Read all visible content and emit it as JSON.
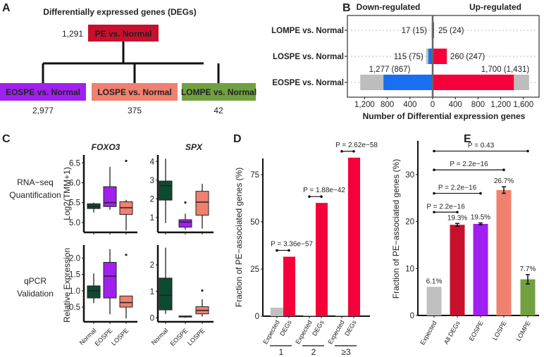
{
  "colors": {
    "pe": "#c8102e",
    "eospe": "#a020f0",
    "lospe": "#f08070",
    "lompe": "#70a040",
    "normal": "#0d4a32",
    "expected": "#c0c0c0",
    "down": "#1a6ef0",
    "up": "#f5003a",
    "grey": "#bdbdbd"
  },
  "chart_data": [
    {
      "panel": "A",
      "type": "diagram",
      "title": "Differentially expressed genes (DEGs)",
      "root": {
        "label": "PE vs. Normal",
        "count": "1,291"
      },
      "children": [
        {
          "label": "EOSPE vs. Normal",
          "count": "2,977"
        },
        {
          "label": "LOSPE vs. Normal",
          "count": "375"
        },
        {
          "label": "LOMPE vs. Normal",
          "count": "42"
        }
      ]
    },
    {
      "panel": "B",
      "type": "bar",
      "orientation": "horizontal-diverging",
      "xlabel": "Number of Differential expression genes",
      "headers": {
        "down": "Down-regulated",
        "up": "Up-regulated"
      },
      "ticks": [
        {
          "v": -1200,
          "t": "1,200"
        },
        {
          "v": -800,
          "t": "800"
        },
        {
          "v": -400,
          "t": "400"
        },
        {
          "v": 0,
          "t": "0"
        },
        {
          "v": 400,
          "t": "400"
        },
        {
          "v": 800,
          "t": "800"
        },
        {
          "v": 1200,
          "t": "1,200"
        },
        {
          "v": 1600,
          "t": "1,600"
        }
      ],
      "rows": [
        {
          "label": "LOMPE vs. Normal",
          "down_total": 17,
          "down_sub": 15,
          "up_total": 25,
          "up_sub": 24,
          "down_text": "17 (15)",
          "up_text": "25 (24)"
        },
        {
          "label": "LOSPE vs. Normal",
          "down_total": 115,
          "down_sub": 75,
          "up_total": 260,
          "up_sub": 247,
          "down_text": "115 (75)",
          "up_text": "260 (247)"
        },
        {
          "label": "EOSPE vs. Normal",
          "down_total": 1277,
          "down_sub": 867,
          "up_total": 1700,
          "up_sub": 1431,
          "down_text": "1,277 (867)",
          "up_text": "1,700 (1,431)"
        }
      ]
    },
    {
      "panel": "C",
      "type": "box",
      "row_labels": [
        [
          "RNA−seq",
          "Quantification"
        ],
        [
          "qPCR",
          "Validation"
        ]
      ],
      "ylabels": [
        "Log2(TMM+1)",
        "Relative Expression"
      ],
      "genes": [
        "FOXO3",
        "SPX"
      ],
      "groups": [
        "Normal",
        "EOSPE",
        "LOSPE"
      ],
      "plots": [
        {
          "gene": "FOXO3",
          "row": 0,
          "ylim": [
            4.75,
            6.7
          ],
          "ticks": [
            {
              "v": 5.0,
              "t": "5.0"
            },
            {
              "v": 5.5,
              "t": "5.5"
            },
            {
              "v": 6.0,
              "t": "6.0"
            },
            {
              "v": 6.5,
              "t": "6.5"
            }
          ],
          "boxes": [
            [
              5.25,
              5.35,
              5.4,
              5.47,
              5.5,
              []
            ],
            [
              5.32,
              5.4,
              5.5,
              5.9,
              6.4,
              []
            ],
            [
              4.8,
              5.2,
              5.37,
              5.52,
              5.57,
              [
                6.55
              ]
            ]
          ]
        },
        {
          "gene": "SPX",
          "row": 0,
          "ylim": [
            0.2,
            4.35
          ],
          "ticks": [
            {
              "v": 1,
              "t": "1"
            },
            {
              "v": 2,
              "t": "2"
            },
            {
              "v": 3,
              "t": "3"
            },
            {
              "v": 4,
              "t": "4"
            }
          ],
          "boxes": [
            [
              0.7,
              1.93,
              2.7,
              2.95,
              4.15,
              []
            ],
            [
              0.35,
              0.48,
              0.75,
              0.88,
              1.2,
              [
                1.8
              ]
            ],
            [
              0.4,
              1.12,
              1.82,
              2.4,
              2.8,
              []
            ]
          ]
        },
        {
          "gene": "FOXO3",
          "row": 1,
          "ylim": [
            0.05,
            2.4
          ],
          "ticks": [
            {
              "v": 0.5,
              "t": "0.5"
            },
            {
              "v": 1.0,
              "t": "1.0"
            },
            {
              "v": 1.5,
              "t": "1.5"
            },
            {
              "v": 2.0,
              "t": "2.0"
            }
          ],
          "boxes": [
            [
              0.62,
              0.78,
              1.0,
              1.15,
              1.53,
              []
            ],
            [
              0.28,
              0.78,
              1.45,
              1.87,
              2.27,
              []
            ],
            [
              0.15,
              0.5,
              0.64,
              0.84,
              0.84,
              [
                2.1
              ]
            ]
          ]
        },
        {
          "gene": "SPX",
          "row": 1,
          "ylim": [
            -0.15,
            2.75
          ],
          "ticks": [
            {
              "v": 0,
              "t": "0"
            },
            {
              "v": 1,
              "t": "1"
            },
            {
              "v": 2,
              "t": "2"
            }
          ],
          "boxes": [
            [
              0.15,
              0.3,
              0.85,
              1.5,
              2.65,
              []
            ],
            [
              0.0,
              0.03,
              0.05,
              0.07,
              0.08,
              []
            ],
            [
              0.05,
              0.15,
              0.28,
              0.42,
              0.7,
              [
                1.03
              ]
            ]
          ]
        }
      ]
    },
    {
      "panel": "D",
      "type": "bar",
      "ylabel": "Fraction of PE−associated genes (%)",
      "ylim": [
        0,
        90
      ],
      "ticks": [
        {
          "v": 0,
          "t": "0"
        },
        {
          "v": 25,
          "t": "25"
        },
        {
          "v": 50,
          "t": "50"
        },
        {
          "v": 75,
          "t": "75"
        }
      ],
      "groups": [
        {
          "label": "1",
          "expected": 4.5,
          "degs": 31.5,
          "p": "P = 3.36e−57"
        },
        {
          "label": "2",
          "expected": 0.3,
          "degs": 60,
          "p": "P = 1.88e−42"
        },
        {
          "label": "≥3",
          "expected": 0.3,
          "degs": 84,
          "p": "P = 2.62e−58"
        }
      ],
      "bar_labels": [
        "Expected",
        "DEGs"
      ]
    },
    {
      "panel": "E",
      "type": "bar",
      "ylabel": "Fraction of PE−associated genes (%)",
      "ylim": [
        0,
        36
      ],
      "ticks": [
        {
          "v": 0,
          "t": "0"
        },
        {
          "v": 10,
          "t": "10"
        },
        {
          "v": 20,
          "t": "20"
        },
        {
          "v": 30,
          "t": "30"
        }
      ],
      "bars": [
        {
          "label": "Expected",
          "value": 6.1,
          "text": "6.1%",
          "err": 0,
          "color": "expected"
        },
        {
          "label": "All DEGs",
          "value": 19.3,
          "text": "19.3%",
          "err": 0.3,
          "color": "pe"
        },
        {
          "label": "EOSPE",
          "value": 19.5,
          "text": "19.5%",
          "err": 0.2,
          "color": "eospe"
        },
        {
          "label": "LOSPE",
          "value": 26.7,
          "text": "26.7%",
          "err": 0.7,
          "color": "lospe"
        },
        {
          "label": "LOMPE",
          "value": 7.7,
          "text": "7.7%",
          "err": 1.0,
          "color": "lompe"
        }
      ],
      "comparisons": [
        {
          "to": 1,
          "p": "P = 2.2e−16",
          "y": 22
        },
        {
          "to": 2,
          "p": "P = 2.2e−16",
          "y": 26
        },
        {
          "to": 3,
          "p": "P = 2.2e−16",
          "y": 31
        },
        {
          "to": 4,
          "p": "P = 0.43",
          "y": 35
        }
      ]
    }
  ],
  "panel_letters": [
    "A",
    "B",
    "C",
    "D",
    "E"
  ]
}
